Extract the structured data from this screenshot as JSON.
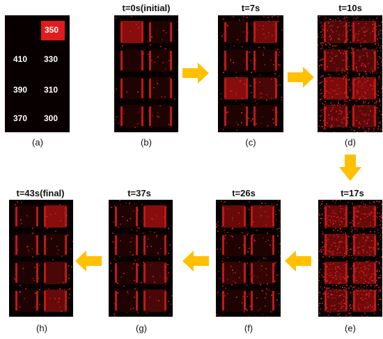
{
  "colors": {
    "accent": "#ffc000",
    "signal": "#d42020",
    "background": "#080000"
  },
  "panels": [
    {
      "caption": "(a)",
      "title": "",
      "values": [
        "350",
        "410",
        "330",
        "390",
        "310",
        "370",
        "300"
      ]
    },
    {
      "caption": "(b)",
      "title": "t=0s(initial)"
    },
    {
      "caption": "(c)",
      "title": "t=7s"
    },
    {
      "caption": "(d)",
      "title": "t=10s"
    },
    {
      "caption": "(e)",
      "title": "t=17s"
    },
    {
      "caption": "(f)",
      "title": "t=26s"
    },
    {
      "caption": "(g)",
      "title": "t=37s"
    },
    {
      "caption": "(h)",
      "title": "t=43s(final)"
    }
  ],
  "arrows": [
    {
      "direction": "right"
    },
    {
      "direction": "right"
    },
    {
      "direction": "down"
    },
    {
      "direction": "left"
    },
    {
      "direction": "left"
    },
    {
      "direction": "left"
    }
  ]
}
